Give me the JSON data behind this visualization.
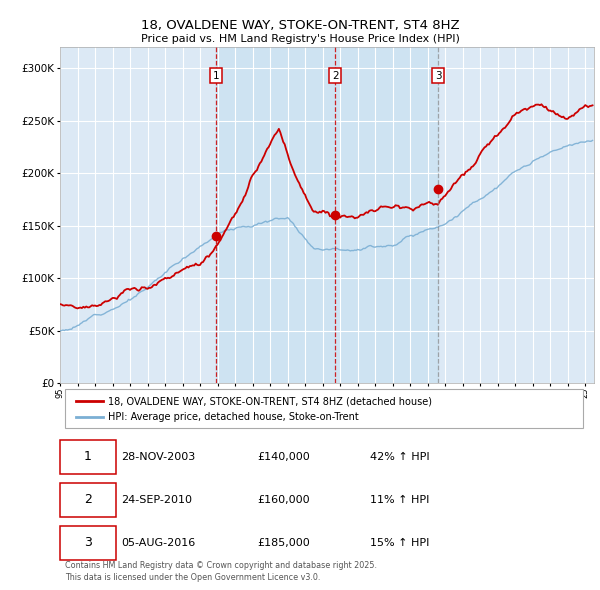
{
  "title": "18, OVALDENE WAY, STOKE-ON-TRENT, ST4 8HZ",
  "subtitle": "Price paid vs. HM Land Registry's House Price Index (HPI)",
  "background_color": "#dce9f5",
  "plot_bg_color": "#dce9f5",
  "outer_bg_color": "#ffffff",
  "red_line_color": "#cc0000",
  "blue_line_color": "#7bafd4",
  "grid_color": "#ffffff",
  "vline1_color": "#cc0000",
  "vline2_color": "#cc0000",
  "vline3_color": "#888888",
  "marker_color": "#cc0000",
  "sale1_date_x": 2003.91,
  "sale1_price": 140000,
  "sale2_date_x": 2010.73,
  "sale2_price": 160000,
  "sale3_date_x": 2016.59,
  "sale3_price": 185000,
  "sale1_label": "28-NOV-2003",
  "sale2_label": "24-SEP-2010",
  "sale3_label": "05-AUG-2016",
  "sale1_hpi": "42% ↑ HPI",
  "sale2_hpi": "11% ↑ HPI",
  "sale3_hpi": "15% ↑ HPI",
  "legend1": "18, OVALDENE WAY, STOKE-ON-TRENT, ST4 8HZ (detached house)",
  "legend2": "HPI: Average price, detached house, Stoke-on-Trent",
  "footnote": "Contains HM Land Registry data © Crown copyright and database right 2025.\nThis data is licensed under the Open Government Licence v3.0.",
  "ylim": [
    0,
    320000
  ],
  "xlim_start": 1995.0,
  "xlim_end": 2025.5
}
